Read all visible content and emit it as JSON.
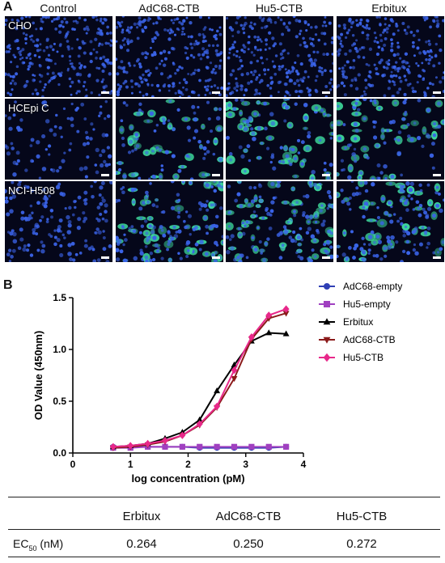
{
  "panel_a": {
    "letter": "A",
    "columns": [
      "Control",
      "AdC68-CTB",
      "Hu5-CTB",
      "Erbitux"
    ],
    "rows": [
      "CHO",
      "HCEpi C",
      "NCI-H508"
    ],
    "colors": {
      "nuclei": "#3a63e8",
      "stain": "#3fe0a0",
      "background": "#05071a"
    }
  },
  "panel_b": {
    "letter": "B",
    "chart_data": {
      "type": "line",
      "xlabel": "log concentration (pM)",
      "ylabel": "OD Value (450nm)",
      "xlim": [
        0,
        4
      ],
      "ylim": [
        0,
        1.5
      ],
      "xticks": [
        0,
        1,
        2,
        3,
        4
      ],
      "yticks": [
        0.0,
        0.5,
        1.0,
        1.5
      ],
      "ytick_labels": [
        "0.0",
        "0.5",
        "1.0",
        "1.5"
      ],
      "grid": false,
      "legend": "right",
      "x": [
        0.7,
        1.0,
        1.3,
        1.6,
        1.9,
        2.2,
        2.5,
        2.8,
        3.1,
        3.4,
        3.7
      ],
      "series": [
        {
          "name": "AdC68-empty",
          "color": "#2f3fb5",
          "marker": "circle",
          "values": [
            0.06,
            0.06,
            0.06,
            0.06,
            0.06,
            0.05,
            0.05,
            0.05,
            0.05,
            0.05,
            0.06
          ]
        },
        {
          "name": "Hu5-empty",
          "color": "#a040c0",
          "marker": "square",
          "values": [
            0.05,
            0.05,
            0.06,
            0.06,
            0.06,
            0.06,
            0.06,
            0.06,
            0.06,
            0.06,
            0.06
          ]
        },
        {
          "name": "Erbitux",
          "color": "#000000",
          "marker": "triangle-up",
          "values": [
            0.06,
            0.07,
            0.09,
            0.14,
            0.2,
            0.32,
            0.6,
            0.85,
            1.08,
            1.16,
            1.15
          ]
        },
        {
          "name": "AdC68-CTB",
          "color": "#8b1a1a",
          "marker": "triangle-down",
          "values": [
            0.05,
            0.06,
            0.08,
            0.11,
            0.17,
            0.27,
            0.44,
            0.72,
            1.1,
            1.3,
            1.35
          ]
        },
        {
          "name": "Hu5-CTB",
          "color": "#e8288a",
          "marker": "diamond",
          "values": [
            0.06,
            0.07,
            0.09,
            0.12,
            0.17,
            0.28,
            0.45,
            0.8,
            1.12,
            1.33,
            1.39
          ]
        }
      ]
    }
  },
  "ec50_table": {
    "row_label_main": "EC",
    "row_label_sub": "50",
    "row_label_unit": " (nM)",
    "headers": [
      "Erbitux",
      "AdC68-CTB",
      "Hu5-CTB"
    ],
    "values": [
      "0.264",
      "0.250",
      "0.272"
    ]
  }
}
